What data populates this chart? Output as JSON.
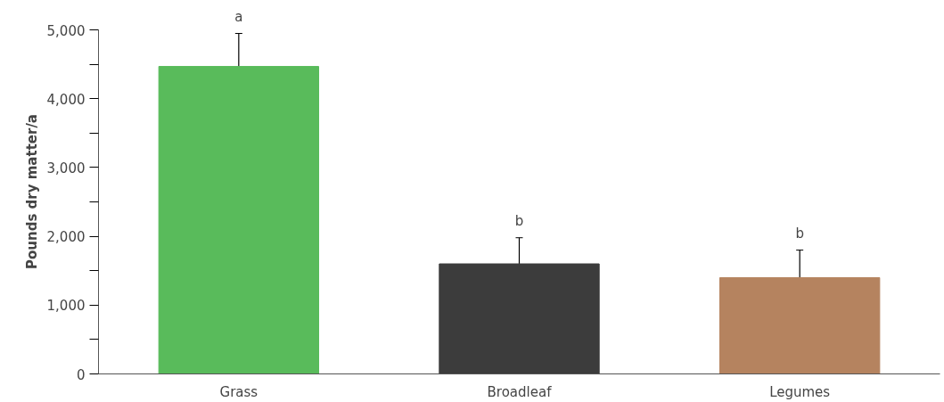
{
  "chart_data": {
    "type": "bar",
    "ylabel": "Pounds dry matter/a",
    "categories": [
      "Grass",
      "Broadleaf",
      "Legumes"
    ],
    "values": [
      4470,
      1600,
      1400
    ],
    "errors": [
      480,
      380,
      400
    ],
    "colors": [
      "#59bb5b",
      "#3c3c3c",
      "#b5835f"
    ],
    "ylim": [
      0,
      5000
    ],
    "yticks": [
      0,
      {
        "value": 500,
        "label": null
      },
      {
        "value": 1000,
        "label": "1,000"
      },
      {
        "value": 1500,
        "label": null
      },
      {
        "value": 2000,
        "label": "2,000"
      },
      {
        "value": 2500,
        "label": null
      },
      {
        "value": 3000,
        "label": "3,000"
      },
      {
        "value": 3500,
        "label": null
      },
      {
        "value": 4000,
        "label": "4,000"
      },
      {
        "value": 4500,
        "label": null
      },
      {
        "value": 5000,
        "label": "5,000"
      }
    ],
    "annotations": [
      "a",
      "b",
      "b"
    ],
    "grid": false
  }
}
